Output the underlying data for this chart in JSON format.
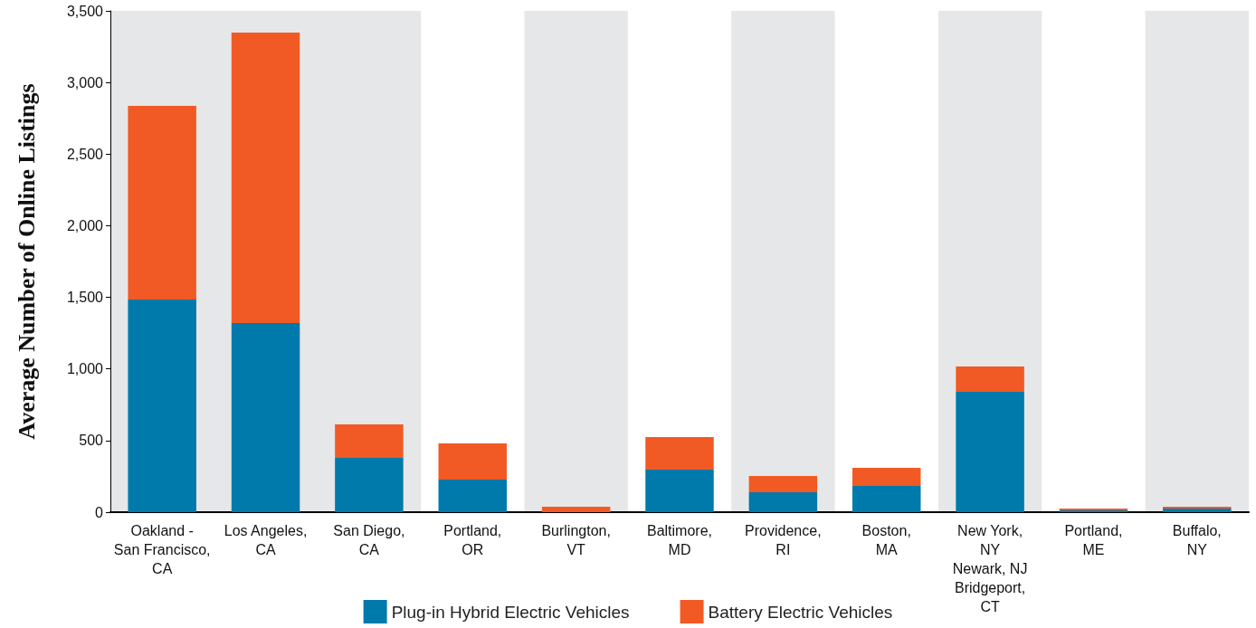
{
  "chart_data": {
    "type": "bar",
    "stacked": true,
    "ylabel": "Average Number of Online Listings",
    "categories": [
      "Oakland -\nSan Francisco,\nCA",
      "Los Angeles,\nCA",
      "San Diego,\nCA",
      "Portland,\nOR",
      "Burlington,\nVT",
      "Baltimore,\nMD",
      "Providence,\nRI",
      "Boston,\nMA",
      "New York,\nNY\nNewark, NJ\nBridgeport,\nCT",
      "Portland,\nME",
      "Buffalo,\nNY"
    ],
    "series": [
      {
        "name": "Plug-in Hybrid Electric Vehicles",
        "color": "#0079ab",
        "values": [
          1485,
          1320,
          379,
          227,
          0,
          297,
          139,
          183,
          840,
          13,
          25
        ]
      },
      {
        "name": "Battery Electric Vehicles",
        "color": "#f15a24",
        "values": [
          1351,
          2028,
          234,
          253,
          38,
          227,
          114,
          127,
          177,
          12,
          13
        ]
      }
    ],
    "ylim": [
      0,
      3500
    ],
    "yticks": [
      0,
      {
        "value": 500,
        "label": "500"
      },
      {
        "value": 1000,
        "label": "1,000"
      },
      {
        "value": 1500,
        "label": "1,500"
      },
      {
        "value": 2000,
        "label": "2,000"
      },
      {
        "value": 2500,
        "label": "2,500"
      },
      {
        "value": 3000,
        "label": "3,000"
      },
      {
        "value": 3500,
        "label": "3,500"
      }
    ],
    "bands": [
      {
        "axis": "x",
        "from": "Oakland -\nSan Francisco,\nCA",
        "to": "San Diego,\nCA",
        "color": "#e6e7e8"
      },
      {
        "axis": "x",
        "from": "Burlington,\nVT",
        "to": "Burlington,\nVT",
        "color": "#e6e7e8"
      },
      {
        "axis": "x",
        "from": "Providence,\nRI",
        "to": "Providence,\nRI",
        "color": "#e6e7e8"
      },
      {
        "axis": "x",
        "from": "New York,\nNY\nNewark, NJ\nBridgeport,\nCT",
        "to": "New York,\nNY\nNewark, NJ\nBridgeport,\nCT",
        "color": "#e6e7e8"
      },
      {
        "axis": "x",
        "from": "Buffalo,\nNY",
        "to": "Buffalo,\nNY",
        "color": "#e6e7e8"
      }
    ],
    "grid": false,
    "legend": "bottom"
  }
}
